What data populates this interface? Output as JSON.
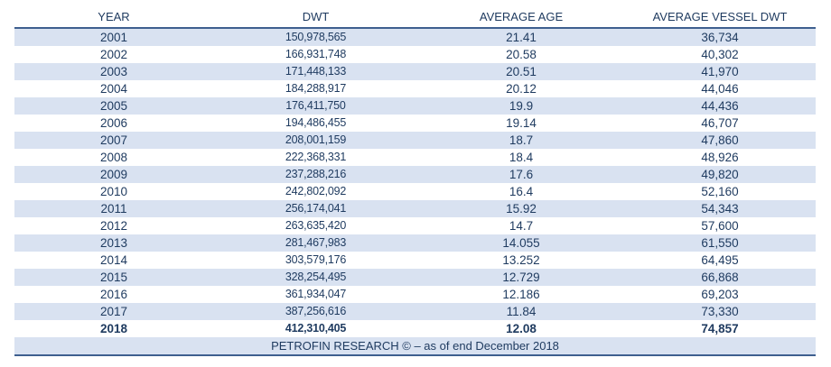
{
  "table": {
    "headers": [
      "YEAR",
      "DWT",
      "AVERAGE AGE",
      "AVERAGE VESSEL DWT"
    ],
    "rows": [
      [
        "2001",
        "150,978,565",
        "21.41",
        "36,734"
      ],
      [
        "2002",
        "166,931,748",
        "20.58",
        "40,302"
      ],
      [
        "2003",
        "171,448,133",
        "20.51",
        "41,970"
      ],
      [
        "2004",
        "184,288,917",
        "20.12",
        "44,046"
      ],
      [
        "2005",
        "176,411,750",
        "19.9",
        "44,436"
      ],
      [
        "2006",
        "194,486,455",
        "19.14",
        "46,707"
      ],
      [
        "2007",
        "208,001,159",
        "18.7",
        "47,860"
      ],
      [
        "2008",
        "222,368,331",
        "18.4",
        "48,926"
      ],
      [
        "2009",
        "237,288,216",
        "17.6",
        "49,820"
      ],
      [
        "2010",
        "242,802,092",
        "16.4",
        "52,160"
      ],
      [
        "2011",
        "256,174,041",
        "15.92",
        "54,343"
      ],
      [
        "2012",
        "263,635,420",
        "14.7",
        "57,600"
      ],
      [
        "2013",
        "281,467,983",
        "14.055",
        "61,550"
      ],
      [
        "2014",
        "303,579,176",
        "13.252",
        "64,495"
      ],
      [
        "2015",
        "328,254,495",
        "12.729",
        "66,868"
      ],
      [
        "2016",
        "361,934,047",
        "12.186",
        "69,203"
      ],
      [
        "2017",
        "387,256,616",
        "11.84",
        "73,330"
      ],
      [
        "2018",
        "412,310,405",
        "12.08",
        "74,857"
      ]
    ],
    "footer": "PETROFIN RESEARCH © –  as of end December 2018"
  },
  "colors": {
    "text": "#1e3a5f",
    "rule": "#3e5f8f",
    "band": "#d9e2f1"
  }
}
